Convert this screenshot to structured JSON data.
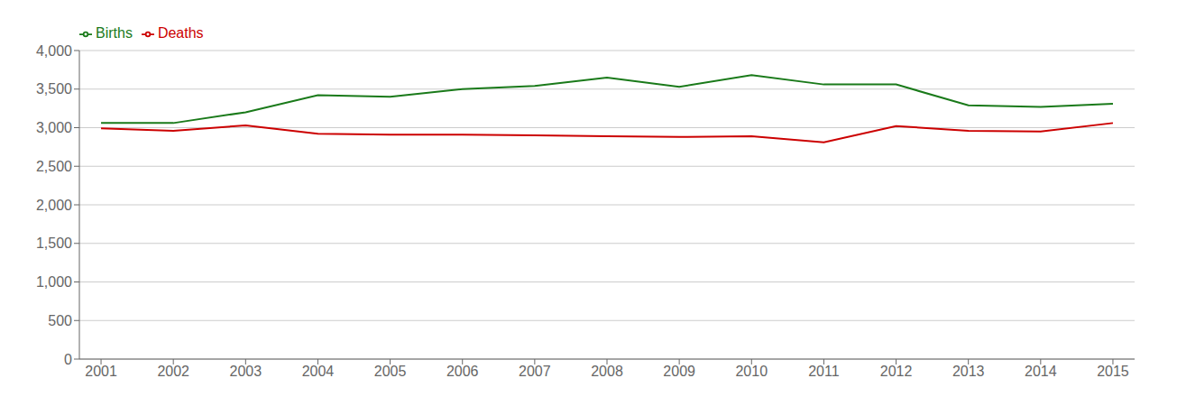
{
  "chart_data": {
    "type": "line",
    "x": [
      2001,
      2002,
      2003,
      2004,
      2005,
      2006,
      2007,
      2008,
      2009,
      2010,
      2011,
      2012,
      2013,
      2014,
      2015
    ],
    "series": [
      {
        "name": "Births",
        "color": "#1a7a1a",
        "values": [
          3060,
          3060,
          3200,
          3420,
          3400,
          3500,
          3540,
          3650,
          3530,
          3680,
          3560,
          3560,
          3290,
          3270,
          3310
        ]
      },
      {
        "name": "Deaths",
        "color": "#cc0000",
        "values": [
          2990,
          2960,
          3030,
          2920,
          2910,
          2910,
          2900,
          2890,
          2880,
          2890,
          2810,
          3020,
          2960,
          2950,
          3060
        ]
      }
    ],
    "xlim": [
      2000.7,
      2015.3
    ],
    "xticks": [
      2001,
      2002,
      2003,
      2004,
      2005,
      2006,
      2007,
      2008,
      2009,
      2010,
      2011,
      2012,
      2013,
      2014,
      2015
    ],
    "ylim": [
      0,
      4000
    ],
    "yticks": [
      0,
      500,
      {
        "value": 1000,
        "label": "1,000"
      },
      {
        "value": 1500,
        "label": "1,500"
      },
      {
        "value": 2000,
        "label": "2,000"
      },
      {
        "value": 2500,
        "label": "2,500"
      },
      {
        "value": 3000,
        "label": "3,000"
      },
      {
        "value": 3500,
        "label": "3,500"
      },
      {
        "value": 4000,
        "label": "4,000"
      }
    ],
    "grid": true,
    "legend": "upper left"
  }
}
